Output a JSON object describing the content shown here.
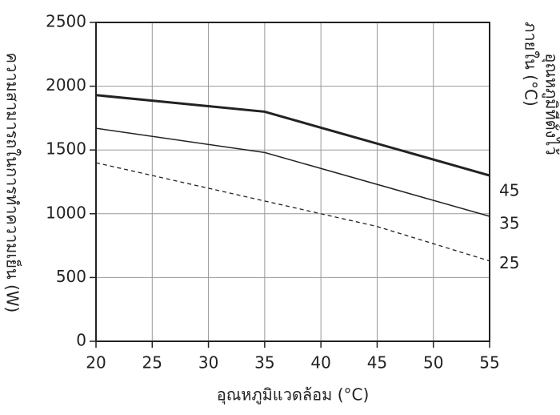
{
  "chart_data": {
    "type": "line",
    "x_label": "อุณหภูมิแวดล้อม (°C)",
    "y_label": "ความสามารถในการทำความเย็น (W)",
    "y2_label": [
      "อุณหภูมิที่ตั้งไว้",
      "ภายใน (°C)"
    ],
    "xlim": [
      20,
      55
    ],
    "xticks": [
      20,
      25,
      30,
      35,
      40,
      45,
      50,
      55
    ],
    "ylim": [
      0,
      2500
    ],
    "yticks": [
      0,
      500,
      1000,
      1500,
      2000,
      2500
    ],
    "grid": true,
    "series": [
      {
        "name": "45",
        "color": "#222222",
        "style": "solid",
        "width": 3,
        "x": [
          20,
          35,
          55
        ],
        "values": [
          1930,
          1800,
          1300
        ]
      },
      {
        "name": "35",
        "color": "#222222",
        "style": "solid",
        "width": 1.5,
        "x": [
          20,
          35,
          55
        ],
        "values": [
          1670,
          1480,
          980
        ]
      },
      {
        "name": "25",
        "color": "#222222",
        "style": "dashed",
        "width": 1.3,
        "x": [
          20,
          45,
          55
        ],
        "values": [
          1400,
          900,
          630
        ]
      }
    ]
  }
}
